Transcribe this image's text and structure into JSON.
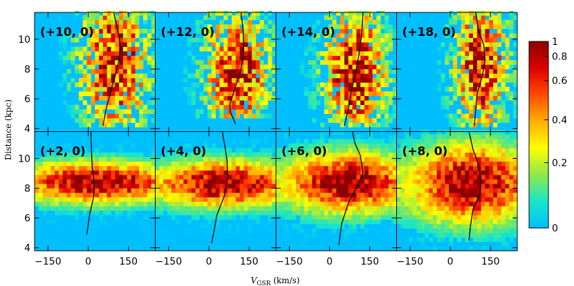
{
  "chart_data": {
    "type": "heatmap",
    "description_units": "2D density histograms, normalized",
    "xlabel": "V",
    "xlabel_sub": "GSR",
    "xlabel_unit": " (km/s)",
    "ylabel": "Distance (kpc)",
    "xlim": [
      -200,
      250
    ],
    "ylim": [
      3.8,
      11.8
    ],
    "xticks": [
      -150,
      0,
      150
    ],
    "xtick_labels": [
      "−150",
      "0",
      "150"
    ],
    "yticks": [
      4,
      6,
      8,
      10
    ],
    "colorbar": {
      "range": [
        0,
        1
      ],
      "scale": "nonlinear",
      "ticks": [
        0,
        0.2,
        0.4,
        0.6,
        0.8,
        1
      ],
      "tick_labels": [
        "0",
        "0.2",
        "0.4",
        "0.6",
        "0.8",
        "1"
      ],
      "colors": [
        "#00bfff",
        "#18e6c8",
        "#8ee84a",
        "#ffff00",
        "#ffb000",
        "#ff4a00",
        "#dd0000",
        "#8b0000"
      ]
    },
    "panels": [
      {
        "label": "(+10, 0)",
        "row": 0,
        "col": 0,
        "seed": 11,
        "peak_v": 100,
        "width_v": 95,
        "peak_d": 8.3,
        "width_d": 2.4,
        "dmin": 4.0,
        "band": false,
        "curve": [
          [
            95,
            11.8
          ],
          [
            110,
            10.6
          ],
          [
            122,
            9.4
          ],
          [
            108,
            8.0
          ],
          [
            85,
            6.6
          ],
          [
            68,
            5.4
          ],
          [
            55,
            4.2
          ]
        ]
      },
      {
        "label": "(+12, 0)",
        "row": 0,
        "col": 1,
        "seed": 23,
        "peak_v": 105,
        "width_v": 90,
        "peak_d": 8.0,
        "width_d": 2.2,
        "dmin": 4.6,
        "band": false,
        "curve": [
          [
            120,
            11.8
          ],
          [
            128,
            10.5
          ],
          [
            130,
            9.2
          ],
          [
            118,
            7.8
          ],
          [
            95,
            6.6
          ],
          [
            78,
            5.6
          ],
          [
            80,
            5.1
          ],
          [
            100,
            4.3
          ]
        ]
      },
      {
        "label": "(+14, 0)",
        "row": 0,
        "col": 2,
        "seed": 37,
        "peak_v": 95,
        "width_v": 90,
        "peak_d": 7.8,
        "width_d": 2.3,
        "dmin": 4.2,
        "band": false,
        "curve": [
          [
            125,
            11.8
          ],
          [
            120,
            10.4
          ],
          [
            110,
            9.0
          ],
          [
            95,
            7.6
          ],
          [
            80,
            6.4
          ],
          [
            70,
            5.3
          ],
          [
            55,
            4.2
          ]
        ]
      },
      {
        "label": "(+18, 0)",
        "row": 0,
        "col": 3,
        "seed": 41,
        "peak_v": 115,
        "width_v": 75,
        "peak_d": 8.2,
        "width_d": 2.4,
        "dmin": 4.0,
        "band": false,
        "curve": [
          [
            95,
            11.8
          ],
          [
            105,
            10.6
          ],
          [
            125,
            9.6
          ],
          [
            130,
            8.6
          ],
          [
            120,
            7.6
          ],
          [
            100,
            6.3
          ],
          [
            95,
            5.3
          ],
          [
            90,
            4.2
          ]
        ]
      },
      {
        "label": "(+2, 0)",
        "row": 1,
        "col": 0,
        "seed": 53,
        "peak_v": 30,
        "width_v": 145,
        "peak_d": 8.4,
        "width_d": 0.9,
        "dmin": 3.8,
        "band": true,
        "curve": [
          [
            10,
            11.8
          ],
          [
            12,
            10.6
          ],
          [
            15,
            9.4
          ],
          [
            20,
            8.8
          ],
          [
            22,
            8.2
          ],
          [
            20,
            7.4
          ],
          [
            5,
            6.2
          ],
          [
            -5,
            4.9
          ]
        ]
      },
      {
        "label": "(+4, 0)",
        "row": 1,
        "col": 1,
        "seed": 67,
        "peak_v": 60,
        "width_v": 130,
        "peak_d": 8.3,
        "width_d": 1.0,
        "dmin": 3.8,
        "band": true,
        "curve": [
          [
            50,
            11.8
          ],
          [
            60,
            10.8
          ],
          [
            68,
            9.8
          ],
          [
            70,
            8.8
          ],
          [
            58,
            7.5
          ],
          [
            30,
            6.2
          ],
          [
            18,
            5.0
          ],
          [
            10,
            4.3
          ]
        ]
      },
      {
        "label": "(+6, 0)",
        "row": 1,
        "col": 2,
        "seed": 71,
        "peak_v": 70,
        "width_v": 115,
        "peak_d": 8.4,
        "width_d": 1.3,
        "dmin": 3.8,
        "band": true,
        "curve": [
          [
            85,
            11.8
          ],
          [
            95,
            11.0
          ],
          [
            115,
            10.2
          ],
          [
            125,
            9.0
          ],
          [
            105,
            8.2
          ],
          [
            70,
            7.0
          ],
          [
            45,
            5.6
          ],
          [
            35,
            4.2
          ]
        ]
      },
      {
        "label": "(+8, 0)",
        "row": 1,
        "col": 3,
        "seed": 83,
        "peak_v": 85,
        "width_v": 110,
        "peak_d": 8.3,
        "width_d": 1.7,
        "dmin": 3.8,
        "band": true,
        "curve": [
          [
            70,
            11.8
          ],
          [
            85,
            10.6
          ],
          [
            105,
            9.6
          ],
          [
            115,
            8.6
          ],
          [
            110,
            7.6
          ],
          [
            85,
            6.6
          ],
          [
            75,
            5.4
          ],
          [
            70,
            4.5
          ]
        ]
      }
    ]
  }
}
